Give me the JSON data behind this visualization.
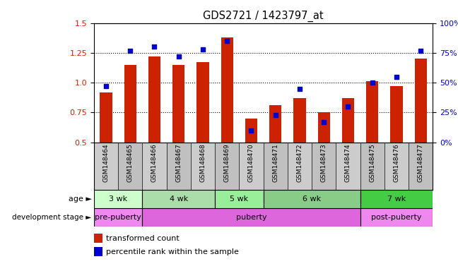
{
  "title": "GDS2721 / 1423797_at",
  "samples": [
    "GSM148464",
    "GSM148465",
    "GSM148466",
    "GSM148467",
    "GSM148468",
    "GSM148469",
    "GSM148470",
    "GSM148471",
    "GSM148472",
    "GSM148473",
    "GSM148474",
    "GSM148475",
    "GSM148476",
    "GSM148477"
  ],
  "red_values": [
    0.92,
    1.15,
    1.22,
    1.15,
    1.17,
    1.38,
    0.7,
    0.81,
    0.87,
    0.75,
    0.87,
    1.01,
    0.97,
    1.2
  ],
  "blue_values_pct": [
    47,
    77,
    80,
    72,
    78,
    85,
    10,
    23,
    45,
    17,
    30,
    50,
    55,
    77
  ],
  "ymin": 0.5,
  "ymax": 1.5,
  "y2min": 0,
  "y2max": 100,
  "yticks": [
    0.5,
    0.75,
    1.0,
    1.25,
    1.5
  ],
  "y2ticks": [
    0,
    25,
    50,
    75,
    100
  ],
  "bar_color": "#cc2200",
  "dot_color": "#0000cc",
  "age_group_data": [
    {
      "label": "3 wk",
      "start": 0,
      "end": 2,
      "color": "#ccffcc"
    },
    {
      "label": "4 wk",
      "start": 2,
      "end": 5,
      "color": "#aaddaa"
    },
    {
      "label": "5 wk",
      "start": 5,
      "end": 7,
      "color": "#99ee99"
    },
    {
      "label": "6 wk",
      "start": 7,
      "end": 11,
      "color": "#88cc88"
    },
    {
      "label": "7 wk",
      "start": 11,
      "end": 14,
      "color": "#44cc44"
    }
  ],
  "dev_group_data": [
    {
      "label": "pre-puberty",
      "start": 0,
      "end": 2,
      "color": "#ee88ee"
    },
    {
      "label": "puberty",
      "start": 2,
      "end": 11,
      "color": "#dd66dd"
    },
    {
      "label": "post-puberty",
      "start": 11,
      "end": 14,
      "color": "#ee88ee"
    }
  ],
  "legend_red": "transformed count",
  "legend_blue": "percentile rank within the sample",
  "xlabel_age": "age",
  "xlabel_dev": "development stage",
  "bar_width": 0.5,
  "n_samples": 14
}
